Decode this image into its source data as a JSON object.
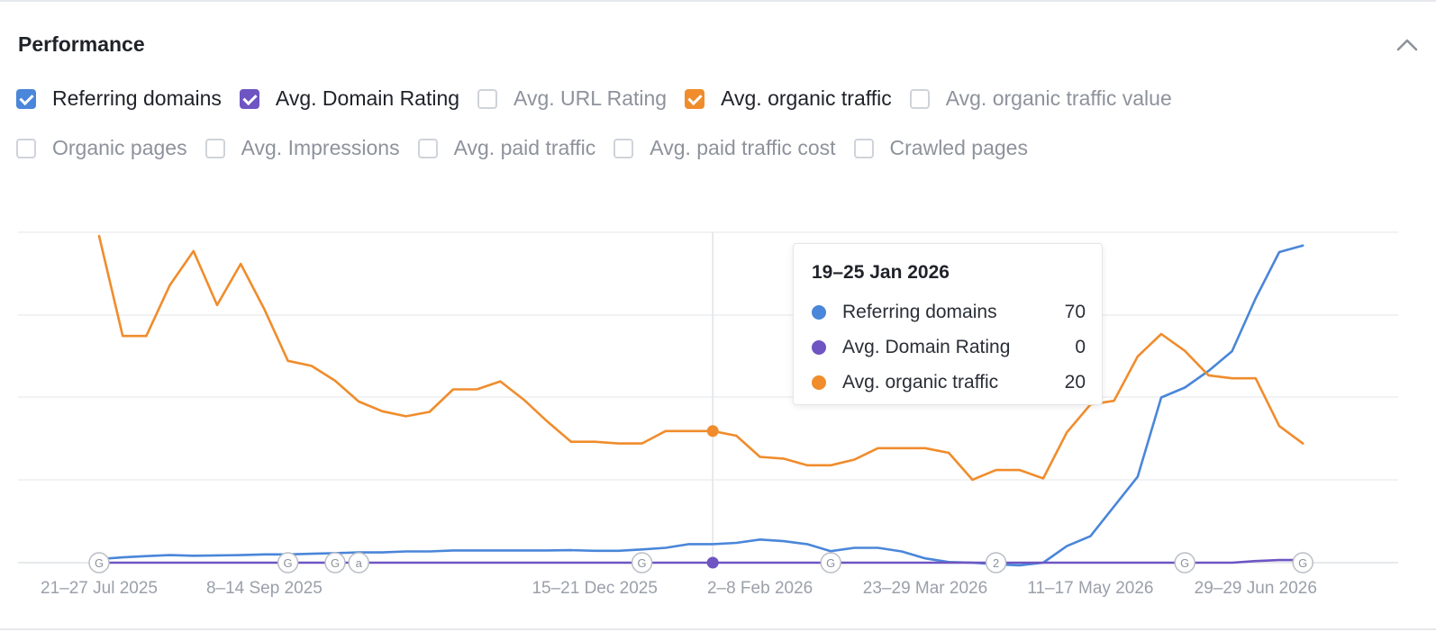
{
  "panel": {
    "title": "Performance"
  },
  "metrics_row1": [
    {
      "label": "Referring domains",
      "checked": true,
      "color": "#4a86d9"
    },
    {
      "label": "Avg. Domain Rating",
      "checked": true,
      "color": "#6e55c2"
    },
    {
      "label": "Avg. URL Rating",
      "checked": false,
      "color": ""
    },
    {
      "label": "Avg. organic traffic",
      "checked": true,
      "color": "#f08c2c"
    },
    {
      "label": "Avg. organic traffic value",
      "checked": false,
      "color": ""
    }
  ],
  "metrics_row2": [
    {
      "label": "Organic pages",
      "checked": false,
      "color": ""
    },
    {
      "label": "Avg. Impressions",
      "checked": false,
      "color": ""
    },
    {
      "label": "Avg. paid traffic",
      "checked": false,
      "color": ""
    },
    {
      "label": "Avg. paid traffic cost",
      "checked": false,
      "color": ""
    },
    {
      "label": "Crawled pages",
      "checked": false,
      "color": ""
    }
  ],
  "tooltip": {
    "title": "19–25 Jan 2026",
    "rows": [
      {
        "name": "Referring domains",
        "value": "70",
        "color": "#4a86d9"
      },
      {
        "name": "Avg. Domain Rating",
        "value": "0",
        "color": "#6e55c2"
      },
      {
        "name": "Avg. organic traffic",
        "value": "20",
        "color": "#f08c2c"
      }
    ]
  },
  "chart_data": {
    "type": "line",
    "x_unit": "week",
    "x_labels": [
      "21–27 Jul 2025",
      "8–14 Sep 2025",
      "15–21 Dec 2025",
      "2–8 Feb 2026",
      "23–29 Mar 2026",
      "11–17 May 2026",
      "29–29 Jun 2026"
    ],
    "x_label_week_index": [
      0,
      7,
      21,
      28,
      35,
      42,
      49
    ],
    "hover_week_index": 26,
    "annotations": [
      {
        "label": "G",
        "week_index": 0
      },
      {
        "label": "G",
        "week_index": 8
      },
      {
        "label": "G",
        "week_index": 10
      },
      {
        "label": "a",
        "week_index": 11
      },
      {
        "label": "G",
        "week_index": 23
      },
      {
        "label": "G",
        "week_index": 31
      },
      {
        "label": "2",
        "week_index": 38
      },
      {
        "label": "G",
        "week_index": 46
      },
      {
        "label": "G",
        "week_index": 51
      }
    ],
    "series": [
      {
        "name": "Referring domains",
        "color": "#4a86d9",
        "ylim": [
          0,
          100
        ],
        "values": [
          1.1,
          1.6,
          2.0,
          2.3,
          2.1,
          2.2,
          2.3,
          2.5,
          2.5,
          2.7,
          2.9,
          3.1,
          3.1,
          3.4,
          3.4,
          3.7,
          3.7,
          3.7,
          3.7,
          3.7,
          3.8,
          3.6,
          3.6,
          4.0,
          4.5,
          5.6,
          5.6,
          6.0,
          7.0,
          6.5,
          5.6,
          3.5,
          4.5,
          4.5,
          3.4,
          1.3,
          0.2,
          0.0,
          -0.5,
          -0.8,
          0.0,
          5.0,
          8.0,
          17.0,
          26.0,
          50.0,
          53.0,
          58.0,
          64.0,
          80.0,
          94.0,
          96.0
        ]
      },
      {
        "name": "Avg. Domain Rating",
        "color": "#6e55c2",
        "ylim": [
          0,
          100
        ],
        "values": [
          0,
          0,
          0,
          0,
          0,
          0,
          0,
          0,
          0,
          0,
          0,
          0,
          0,
          0,
          0,
          0,
          0,
          0,
          0,
          0,
          0,
          0,
          0,
          0,
          0,
          0,
          0,
          0,
          0,
          0,
          0,
          0,
          0,
          0,
          0,
          0,
          0,
          0,
          0,
          0,
          0,
          0,
          0,
          0,
          0,
          0,
          0,
          0,
          0,
          0.5,
          0.8,
          0.8
        ]
      },
      {
        "name": "Avg. organic traffic",
        "color": "#f08c2c",
        "ylim": [
          -40,
          58.4
        ],
        "values": [
          57.3,
          27.5,
          27.5,
          42.7,
          52.8,
          36.7,
          49.0,
          35.5,
          20.1,
          18.6,
          14.2,
          8.0,
          5.1,
          3.6,
          4.9,
          11.6,
          11.6,
          14.0,
          8.5,
          2.0,
          -4.0,
          -4.0,
          -4.5,
          -4.5,
          -0.8,
          -0.8,
          -0.8,
          -2.2,
          -8.5,
          -9.0,
          -11.0,
          -11.0,
          -9.3,
          -5.9,
          -5.9,
          -5.9,
          -7.3,
          -15.3,
          -12.4,
          -12.4,
          -14.9,
          -1.2,
          7.1,
          8.2,
          21.4,
          28.1,
          23.1,
          15.8,
          14.9,
          14.9,
          0.7,
          -4.5
        ]
      }
    ]
  }
}
